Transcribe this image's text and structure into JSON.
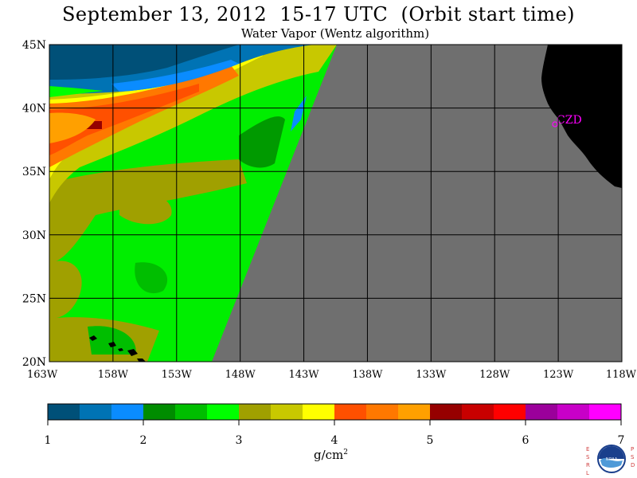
{
  "header": {
    "title": "September 13, 2012  15-17 UTC  (Orbit start time)",
    "subtitle": "Water Vapor (Wentz algorithm)"
  },
  "map": {
    "lat_labels": [
      "45N",
      "40N",
      "35N",
      "30N",
      "25N",
      "20N"
    ],
    "lon_labels": [
      "163W",
      "158W",
      "153W",
      "148W",
      "143W",
      "138W",
      "133W",
      "128W",
      "123W",
      "118W"
    ],
    "station_label": "CZD",
    "colors": {
      "no_data": "#6f6f6f",
      "land": "#000000",
      "station": "#ff00ff",
      "grid": "#000000"
    }
  },
  "colorbar": {
    "colors": [
      "#005078",
      "#0073b4",
      "#0a8cff",
      "#008c00",
      "#00be00",
      "#00ff00",
      "#a0a000",
      "#c8c800",
      "#ffff00",
      "#ff5000",
      "#ff7800",
      "#ffa000",
      "#960000",
      "#c80000",
      "#ff0000",
      "#9b009b",
      "#c800c8",
      "#ff00ff"
    ],
    "tick_labels": [
      "1",
      "2",
      "3",
      "4",
      "5",
      "6",
      "7"
    ],
    "units_base": "g/cm",
    "units_sup": "2"
  },
  "logo": {
    "left_letters": "ESRL",
    "right_letters": "PSD",
    "center_text": "NOAA"
  }
}
